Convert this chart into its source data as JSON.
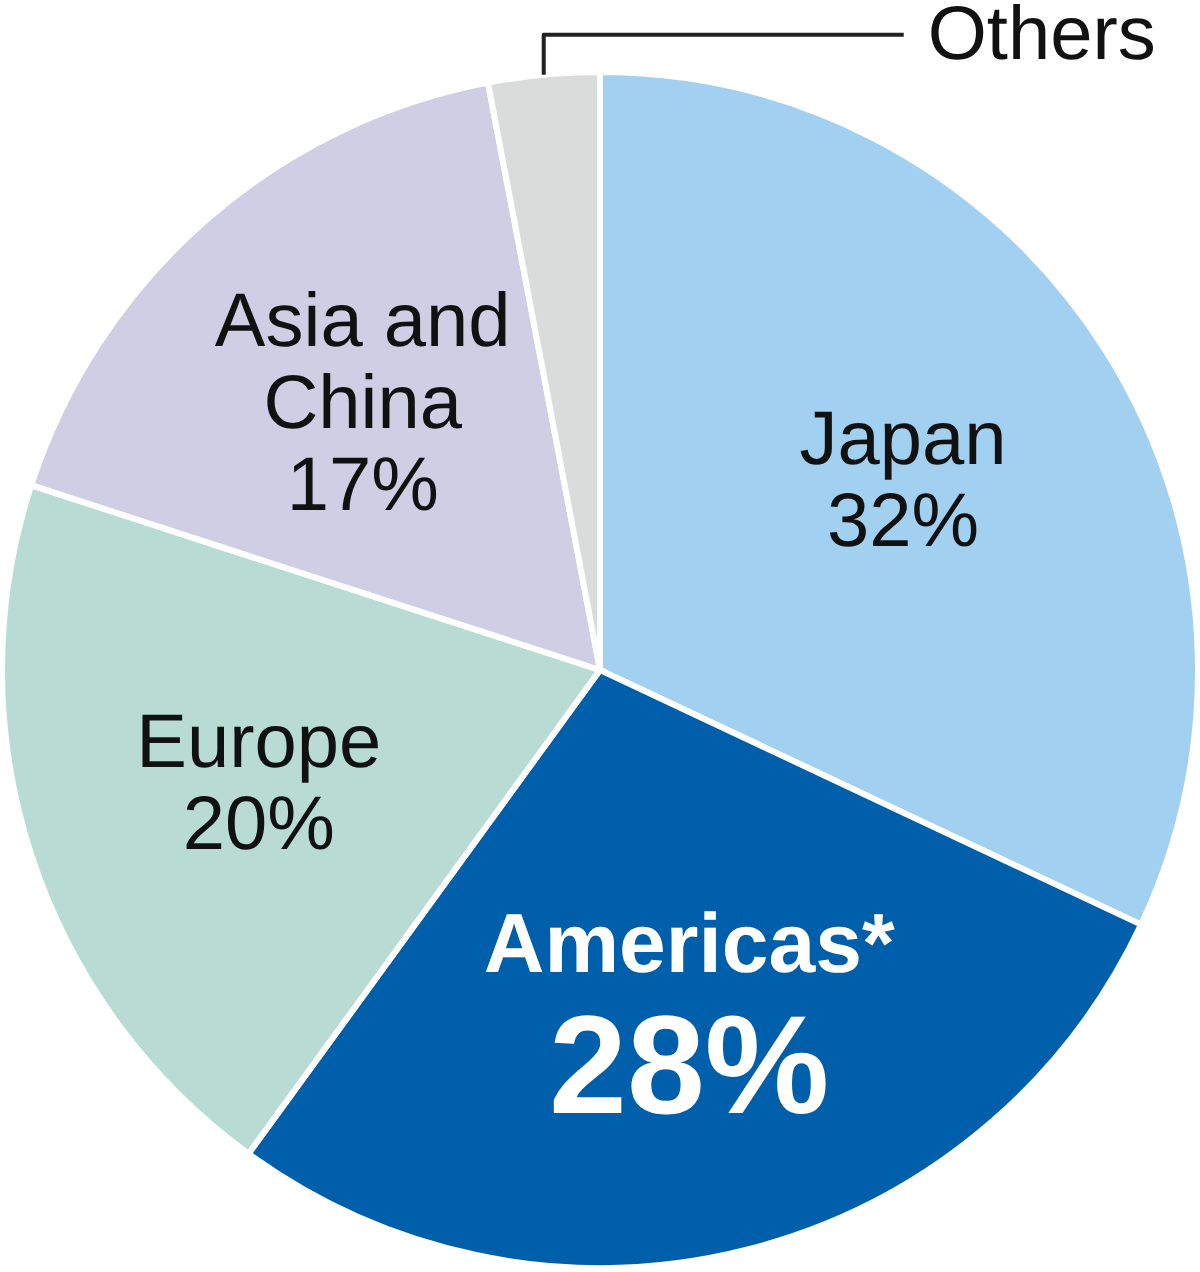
{
  "chart_data": {
    "type": "pie",
    "categories": [
      "Japan",
      "Americas*",
      "Europe",
      "Asia and China",
      "Others"
    ],
    "values": [
      32,
      28,
      20,
      17,
      3
    ],
    "colors": [
      "#a2d0f0",
      "#005faa",
      "#b8dcd3",
      "#cfcee4",
      "#dadbdb"
    ],
    "value_labels": [
      "32%",
      "28%",
      "20%",
      "17%",
      null
    ]
  }
}
